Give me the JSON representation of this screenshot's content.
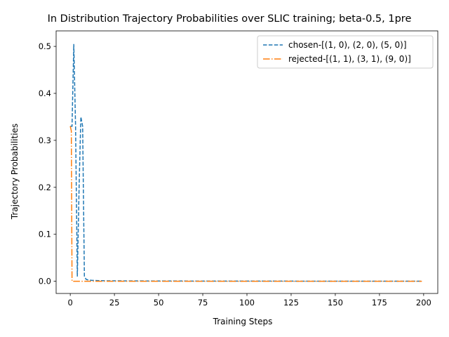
{
  "chart_data": {
    "type": "line",
    "title": "In Distribution Trajectory Probabilities over SLIC training;  beta-0.5, 1pre",
    "xlabel": "Training Steps",
    "ylabel": "Trajectory Probabilities",
    "xlim": [
      -8,
      208
    ],
    "ylim": [
      -0.026,
      0.533
    ],
    "xticks": [
      0,
      25,
      50,
      75,
      100,
      125,
      150,
      175,
      200
    ],
    "yticks": [
      0.0,
      0.1,
      0.2,
      0.3,
      0.4,
      0.5
    ],
    "ytick_labels": [
      "0.0",
      "0.1",
      "0.2",
      "0.3",
      "0.4",
      "0.5"
    ],
    "grid": false,
    "legend_position": "top-right",
    "series": [
      {
        "name": "chosen-[(1, 0), (2, 0), (5, 0)]",
        "color": "#1f77b4",
        "dash": "dashed",
        "x": [
          0,
          1,
          2,
          3,
          4,
          5,
          6,
          7,
          8,
          9,
          10,
          12,
          15,
          20,
          30,
          50,
          100,
          150,
          199
        ],
        "y": [
          0.33,
          0.33,
          0.505,
          0.33,
          0.01,
          0.2,
          0.35,
          0.33,
          0.01,
          0.004,
          0.003,
          0.002,
          0.0015,
          0.001,
          0.0008,
          0.0005,
          0.0003,
          0.0002,
          0.0002
        ]
      },
      {
        "name": "rejected-[(1, 1), (3, 1), (9, 0)]",
        "color": "#ff7f0e",
        "dash": "dashdot",
        "x": [
          0,
          0.6,
          1,
          2,
          5,
          10,
          50,
          100,
          150,
          199
        ],
        "y": [
          0.33,
          0.32,
          0.0,
          0.0,
          0.0,
          0.0,
          0.0,
          0.0,
          0.0,
          0.0
        ]
      }
    ]
  }
}
